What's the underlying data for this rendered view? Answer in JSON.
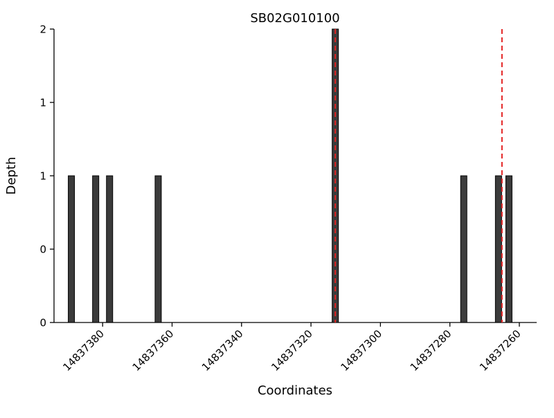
{
  "chart_data": {
    "type": "bar",
    "title": "SB02G010100",
    "xlabel": "Coordinates",
    "ylabel": "Depth",
    "x_reversed": true,
    "xlim": [
      14837394,
      14837255
    ],
    "ylim": [
      0,
      2
    ],
    "x_ticks": [
      14837380,
      14837360,
      14837340,
      14837320,
      14837300,
      14837280,
      14837260
    ],
    "y_ticks": [
      0,
      0.5,
      1,
      1.5,
      2
    ],
    "y_tick_labels": [
      "0",
      "0",
      "1",
      "1",
      "2"
    ],
    "bars": [
      {
        "coordinate": 14837389,
        "depth": 1
      },
      {
        "coordinate": 14837382,
        "depth": 1
      },
      {
        "coordinate": 14837378,
        "depth": 1
      },
      {
        "coordinate": 14837364,
        "depth": 1
      },
      {
        "coordinate": 14837313,
        "depth": 2
      },
      {
        "coordinate": 14837276,
        "depth": 1
      },
      {
        "coordinate": 14837266,
        "depth": 1
      },
      {
        "coordinate": 14837263,
        "depth": 1
      }
    ],
    "vlines": [
      {
        "coordinate": 14837313,
        "style": "dashed"
      },
      {
        "coordinate": 14837265,
        "style": "dashed"
      }
    ],
    "colors": {
      "bar_fill": "#3b3b3b",
      "bar_edge": "#000000",
      "vline": "#e32222",
      "axis": "#000000",
      "text": "#000000"
    }
  }
}
